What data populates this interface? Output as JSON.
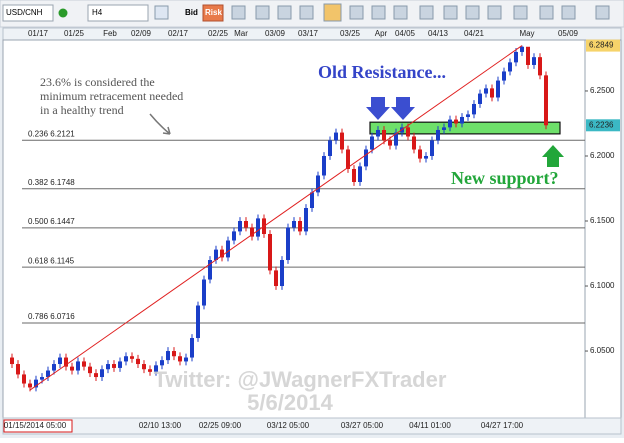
{
  "toolbar": {
    "symbol": "USD/CNH",
    "timeframe": "H4",
    "bid": "Bid",
    "risk": "Risk"
  },
  "chart_data": {
    "type": "candlestick",
    "top_axis_labels": [
      "01/17",
      "01/25",
      "Feb",
      "02/09",
      "02/17",
      "02/25",
      "Mar",
      "03/09",
      "03/17",
      "03/25",
      "Apr",
      "04/05",
      "04/13",
      "04/21",
      "May",
      "05/09"
    ],
    "bottom_axis_labels": [
      "01/15/2014 05:00",
      "02/10 13:00",
      "02/25 09:00",
      "03/12 05:00",
      "03/27 05:00",
      "04/11 01:00",
      "04/27 17:00"
    ],
    "ylim": [
      5.9985,
      6.2892
    ],
    "yticks": [
      {
        "value": 6.25,
        "label": "6.2500"
      },
      {
        "value": 6.2,
        "label": "6.2000"
      },
      {
        "value": 6.15,
        "label": "6.1500"
      },
      {
        "value": 6.1,
        "label": "6.1000"
      },
      {
        "value": 6.05,
        "label": "6.0500"
      }
    ],
    "high_marker": {
      "value": 6.2849,
      "label": "6.2849"
    },
    "last_price": {
      "value": 6.2236,
      "label": "6.2236"
    },
    "up_color": "#1a3ec8",
    "down_color": "#d81818",
    "open": [
      6.045,
      6.04,
      6.032,
      6.025,
      6.022,
      6.028,
      6.03,
      6.035,
      6.04,
      6.045,
      6.038,
      6.035,
      6.042,
      6.038,
      6.033,
      6.03,
      6.036,
      6.04,
      6.037,
      6.042,
      6.046,
      6.044,
      6.04,
      6.036,
      6.034,
      6.039,
      6.043,
      6.05,
      6.046,
      6.042,
      6.045,
      6.06,
      6.085,
      6.105,
      6.12,
      6.128,
      6.122,
      6.135,
      6.142,
      6.15,
      6.145,
      6.138,
      6.152,
      6.14,
      6.112,
      6.1,
      6.12,
      6.145,
      6.15,
      6.142,
      6.16,
      6.172,
      6.185,
      6.2,
      6.212,
      6.218,
      6.205,
      6.19,
      6.18,
      6.192,
      6.205,
      6.215,
      6.22,
      6.212,
      6.208,
      6.218,
      6.222,
      6.215,
      6.205,
      6.198,
      6.2,
      6.212,
      6.22,
      6.222,
      6.228,
      6.225,
      6.23,
      6.232,
      6.24,
      6.248,
      6.252,
      6.245,
      6.258,
      6.265,
      6.272,
      6.28,
      6.284,
      6.27,
      6.276,
      6.262
    ],
    "high": [
      6.048,
      6.043,
      6.035,
      6.028,
      6.031,
      6.033,
      6.038,
      6.043,
      6.048,
      6.048,
      6.041,
      6.045,
      6.045,
      6.041,
      6.036,
      6.039,
      6.043,
      6.043,
      6.045,
      6.049,
      6.049,
      6.047,
      6.043,
      6.039,
      6.042,
      6.046,
      6.053,
      6.053,
      6.049,
      6.048,
      6.063,
      6.088,
      6.108,
      6.123,
      6.131,
      6.131,
      6.138,
      6.145,
      6.153,
      6.153,
      6.148,
      6.155,
      6.155,
      6.143,
      6.115,
      6.123,
      6.148,
      6.153,
      6.153,
      6.163,
      6.175,
      6.188,
      6.203,
      6.215,
      6.221,
      6.221,
      6.208,
      6.193,
      6.195,
      6.208,
      6.218,
      6.223,
      6.223,
      6.215,
      6.221,
      6.225,
      6.225,
      6.218,
      6.208,
      6.203,
      6.215,
      6.223,
      6.225,
      6.231,
      6.231,
      6.233,
      6.235,
      6.243,
      6.251,
      6.255,
      6.255,
      6.261,
      6.268,
      6.275,
      6.283,
      6.2849,
      6.283,
      6.279,
      6.279,
      6.265
    ],
    "low": [
      6.037,
      6.029,
      6.022,
      6.019,
      6.019,
      6.025,
      6.027,
      6.032,
      6.037,
      6.035,
      6.032,
      6.032,
      6.035,
      6.03,
      6.027,
      6.027,
      6.033,
      6.034,
      6.034,
      6.039,
      6.041,
      6.037,
      6.033,
      6.031,
      6.031,
      6.036,
      6.04,
      6.043,
      6.039,
      6.039,
      6.042,
      6.057,
      6.082,
      6.102,
      6.117,
      6.119,
      6.119,
      6.132,
      6.139,
      6.142,
      6.135,
      6.135,
      6.137,
      6.109,
      6.097,
      6.097,
      6.117,
      6.142,
      6.139,
      6.139,
      6.157,
      6.169,
      6.182,
      6.197,
      6.209,
      6.202,
      6.187,
      6.177,
      6.177,
      6.189,
      6.202,
      6.212,
      6.209,
      6.205,
      6.205,
      6.215,
      6.212,
      6.202,
      6.195,
      6.195,
      6.197,
      6.209,
      6.217,
      6.219,
      6.222,
      6.222,
      6.227,
      6.229,
      6.237,
      6.245,
      6.242,
      6.242,
      6.255,
      6.262,
      6.269,
      6.277,
      6.267,
      6.267,
      6.259,
      6.2206
    ],
    "close": [
      6.04,
      6.032,
      6.025,
      6.022,
      6.028,
      6.03,
      6.035,
      6.04,
      6.045,
      6.038,
      6.035,
      6.042,
      6.038,
      6.033,
      6.03,
      6.036,
      6.04,
      6.037,
      6.042,
      6.046,
      6.044,
      6.04,
      6.036,
      6.034,
      6.039,
      6.043,
      6.05,
      6.046,
      6.042,
      6.045,
      6.06,
      6.085,
      6.105,
      6.12,
      6.128,
      6.122,
      6.135,
      6.142,
      6.15,
      6.145,
      6.138,
      6.152,
      6.14,
      6.112,
      6.1,
      6.12,
      6.145,
      6.15,
      6.142,
      6.16,
      6.172,
      6.185,
      6.2,
      6.212,
      6.218,
      6.205,
      6.19,
      6.18,
      6.192,
      6.205,
      6.215,
      6.22,
      6.212,
      6.208,
      6.218,
      6.222,
      6.215,
      6.205,
      6.198,
      6.2,
      6.212,
      6.22,
      6.222,
      6.228,
      6.225,
      6.23,
      6.232,
      6.24,
      6.248,
      6.252,
      6.245,
      6.258,
      6.265,
      6.272,
      6.28,
      6.284,
      6.27,
      6.276,
      6.262,
      6.2236
    ],
    "fib_levels": [
      {
        "value": 6.2121,
        "label": "0.236 6.2121"
      },
      {
        "value": 6.1748,
        "label": "0.382 6.1748"
      },
      {
        "value": 6.1447,
        "label": "0.500 6.1447"
      },
      {
        "value": 6.1145,
        "label": "0.618 6.1145"
      },
      {
        "value": 6.0716,
        "label": "0.786 6.0716"
      }
    ],
    "trendline": [
      6.02,
      6.2849
    ],
    "support_zone": [
      6.217,
      6.226
    ],
    "annotations": {
      "note": [
        "23.6% is considered the",
        "minimum retracement needed",
        "in a healthy trend"
      ],
      "resistance": "Old Resistance...",
      "support": "New support?",
      "watermark": [
        "Twitter: @JWagnerFXTrader",
        "5/6/2014"
      ]
    }
  }
}
